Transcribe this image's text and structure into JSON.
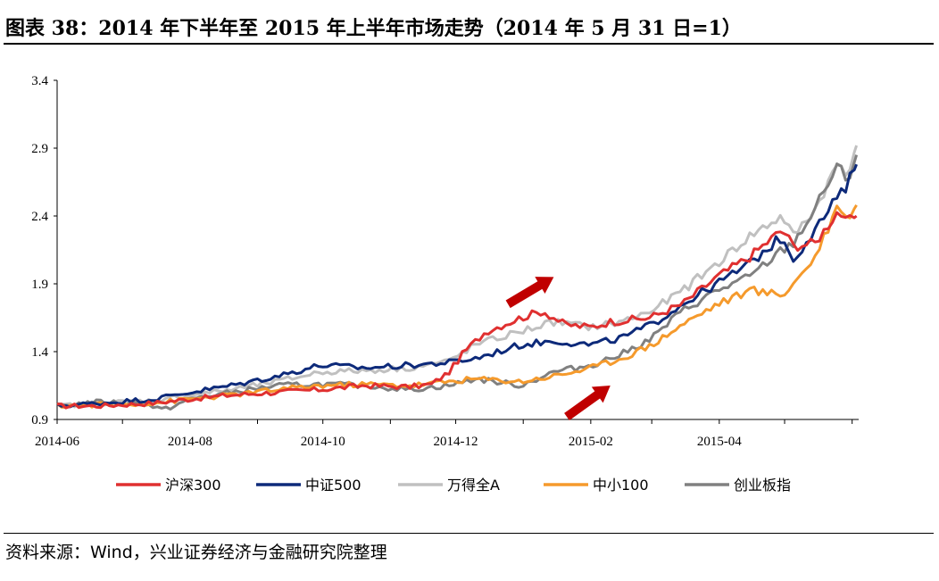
{
  "title": "图表 38：2014 年下半年至 2015 年上半年市场走势（2014 年 5 月 31 日=1）",
  "source": "资料来源：Wind，兴业证券经济与金融研究院整理",
  "chart_data": {
    "type": "line",
    "title": "",
    "xlabel": "",
    "ylabel": "",
    "x_range": [
      "2014-06",
      "2015-05"
    ],
    "ylim": [
      0.9,
      3.4
    ],
    "yticks": [
      0.9,
      1.4,
      1.9,
      2.4,
      2.9,
      3.4
    ],
    "ytick_labels": [
      "0.9",
      "1.4",
      "1.9",
      "2.4",
      "2.9",
      "3.4"
    ],
    "xticks": [
      "2014-06",
      "2014-08",
      "2014-10",
      "2014-12",
      "2015-02",
      "2015-04"
    ],
    "grid": false,
    "legend_position": "bottom",
    "arrows": [
      {
        "from": [
          "2014-12-25",
          1.75
        ],
        "to": [
          "2015-01-15",
          1.95
        ],
        "color": "#c00000"
      },
      {
        "from": [
          "2015-01-21",
          0.92
        ],
        "to": [
          "2015-02-10",
          1.15
        ],
        "color": "#c00000"
      }
    ],
    "series": [
      {
        "name": "沪深300",
        "color": "#e03030",
        "points": [
          [
            "2014-06-01",
            1.0
          ],
          [
            "2014-06-20",
            1.0
          ],
          [
            "2014-07-15",
            1.02
          ],
          [
            "2014-08-01",
            1.05
          ],
          [
            "2014-08-20",
            1.08
          ],
          [
            "2014-09-10",
            1.1
          ],
          [
            "2014-09-30",
            1.12
          ],
          [
            "2014-10-20",
            1.15
          ],
          [
            "2014-11-10",
            1.14
          ],
          [
            "2014-11-20",
            1.16
          ],
          [
            "2014-11-28",
            1.25
          ],
          [
            "2014-12-05",
            1.4
          ],
          [
            "2014-12-15",
            1.55
          ],
          [
            "2014-12-31",
            1.65
          ],
          [
            "2015-01-10",
            1.7
          ],
          [
            "2015-01-20",
            1.6
          ],
          [
            "2015-02-01",
            1.58
          ],
          [
            "2015-02-10",
            1.62
          ],
          [
            "2015-02-28",
            1.65
          ],
          [
            "2015-03-15",
            1.75
          ],
          [
            "2015-03-31",
            1.95
          ],
          [
            "2015-04-15",
            2.1
          ],
          [
            "2015-04-30",
            2.3
          ],
          [
            "2015-05-05",
            2.18
          ],
          [
            "2015-05-15",
            2.2
          ],
          [
            "2015-05-26",
            2.45
          ],
          [
            "2015-05-29",
            2.35
          ],
          [
            "2015-06-03",
            2.4
          ]
        ]
      },
      {
        "name": "中证500",
        "color": "#0d2a7a",
        "points": [
          [
            "2014-06-01",
            1.0
          ],
          [
            "2014-06-20",
            1.02
          ],
          [
            "2014-07-15",
            1.05
          ],
          [
            "2014-08-01",
            1.1
          ],
          [
            "2014-08-20",
            1.15
          ],
          [
            "2014-09-10",
            1.22
          ],
          [
            "2014-09-30",
            1.3
          ],
          [
            "2014-10-20",
            1.28
          ],
          [
            "2014-11-10",
            1.3
          ],
          [
            "2014-11-28",
            1.32
          ],
          [
            "2014-12-10",
            1.35
          ],
          [
            "2014-12-31",
            1.45
          ],
          [
            "2015-01-15",
            1.48
          ],
          [
            "2015-02-01",
            1.45
          ],
          [
            "2015-02-15",
            1.5
          ],
          [
            "2015-03-01",
            1.6
          ],
          [
            "2015-03-15",
            1.75
          ],
          [
            "2015-03-31",
            1.9
          ],
          [
            "2015-04-15",
            2.05
          ],
          [
            "2015-04-30",
            2.25
          ],
          [
            "2015-05-05",
            2.08
          ],
          [
            "2015-05-15",
            2.3
          ],
          [
            "2015-05-26",
            2.55
          ],
          [
            "2015-05-29",
            2.6
          ],
          [
            "2015-06-03",
            2.78
          ]
        ]
      },
      {
        "name": "万得全A",
        "color": "#c0c0c0",
        "points": [
          [
            "2014-06-01",
            1.0
          ],
          [
            "2014-06-20",
            1.02
          ],
          [
            "2014-07-15",
            1.04
          ],
          [
            "2014-08-01",
            1.08
          ],
          [
            "2014-08-20",
            1.12
          ],
          [
            "2014-09-10",
            1.18
          ],
          [
            "2014-09-30",
            1.25
          ],
          [
            "2014-10-20",
            1.26
          ],
          [
            "2014-11-10",
            1.28
          ],
          [
            "2014-11-28",
            1.33
          ],
          [
            "2014-12-10",
            1.45
          ],
          [
            "2014-12-31",
            1.55
          ],
          [
            "2015-01-15",
            1.62
          ],
          [
            "2015-02-01",
            1.58
          ],
          [
            "2015-02-15",
            1.62
          ],
          [
            "2015-03-01",
            1.7
          ],
          [
            "2015-03-15",
            1.85
          ],
          [
            "2015-03-31",
            2.05
          ],
          [
            "2015-04-15",
            2.25
          ],
          [
            "2015-04-30",
            2.4
          ],
          [
            "2015-05-05",
            2.25
          ],
          [
            "2015-05-15",
            2.45
          ],
          [
            "2015-05-26",
            2.8
          ],
          [
            "2015-05-29",
            2.7
          ],
          [
            "2015-06-03",
            2.92
          ]
        ]
      },
      {
        "name": "中小100",
        "color": "#f59a2c",
        "points": [
          [
            "2014-06-01",
            1.0
          ],
          [
            "2014-06-20",
            1.01
          ],
          [
            "2014-07-15",
            1.02
          ],
          [
            "2014-08-01",
            1.05
          ],
          [
            "2014-08-20",
            1.08
          ],
          [
            "2014-09-10",
            1.12
          ],
          [
            "2014-09-30",
            1.15
          ],
          [
            "2014-10-20",
            1.16
          ],
          [
            "2014-11-10",
            1.15
          ],
          [
            "2014-11-28",
            1.18
          ],
          [
            "2014-12-10",
            1.2
          ],
          [
            "2014-12-31",
            1.18
          ],
          [
            "2015-01-15",
            1.22
          ],
          [
            "2015-02-01",
            1.28
          ],
          [
            "2015-02-15",
            1.35
          ],
          [
            "2015-03-01",
            1.45
          ],
          [
            "2015-03-15",
            1.6
          ],
          [
            "2015-03-31",
            1.75
          ],
          [
            "2015-04-15",
            1.85
          ],
          [
            "2015-04-30",
            1.82
          ],
          [
            "2015-05-05",
            1.9
          ],
          [
            "2015-05-15",
            2.1
          ],
          [
            "2015-05-26",
            2.5
          ],
          [
            "2015-05-29",
            2.38
          ],
          [
            "2015-06-03",
            2.48
          ]
        ]
      },
      {
        "name": "创业板指",
        "color": "#808080",
        "points": [
          [
            "2014-06-01",
            1.0
          ],
          [
            "2014-06-20",
            1.03
          ],
          [
            "2014-07-10",
            1.02
          ],
          [
            "2014-07-20",
            0.97
          ],
          [
            "2014-08-01",
            1.05
          ],
          [
            "2014-08-20",
            1.1
          ],
          [
            "2014-09-10",
            1.15
          ],
          [
            "2014-09-30",
            1.16
          ],
          [
            "2014-10-20",
            1.15
          ],
          [
            "2014-11-10",
            1.12
          ],
          [
            "2014-11-28",
            1.15
          ],
          [
            "2014-12-10",
            1.2
          ],
          [
            "2014-12-31",
            1.15
          ],
          [
            "2015-01-15",
            1.25
          ],
          [
            "2015-02-01",
            1.3
          ],
          [
            "2015-02-15",
            1.38
          ],
          [
            "2015-03-01",
            1.5
          ],
          [
            "2015-03-15",
            1.7
          ],
          [
            "2015-03-31",
            1.85
          ],
          [
            "2015-04-15",
            1.95
          ],
          [
            "2015-04-30",
            2.15
          ],
          [
            "2015-05-05",
            2.2
          ],
          [
            "2015-05-15",
            2.45
          ],
          [
            "2015-05-26",
            2.8
          ],
          [
            "2015-05-29",
            2.62
          ],
          [
            "2015-06-03",
            2.85
          ]
        ]
      }
    ]
  }
}
